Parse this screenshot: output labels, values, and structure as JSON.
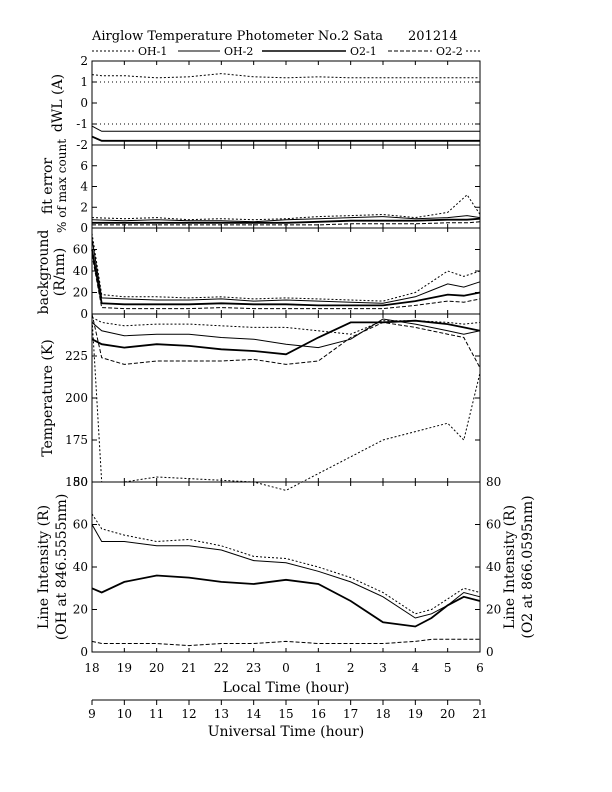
{
  "header": {
    "title": "Airglow Temperature Photometer No.2  Sata",
    "date": "201214",
    "legend": [
      "OH-1",
      "OH-2",
      "O2-1",
      "O2-2"
    ]
  },
  "colors": {
    "ink": "#000000",
    "background": "#ffffff"
  },
  "chart_data": [
    {
      "type": "line",
      "panel": "dwl",
      "ylabel": "dWL (A)",
      "ylim": [
        -2,
        2
      ],
      "yticks": [
        -2,
        -1,
        0,
        1,
        2
      ],
      "x": [
        18.0,
        18.3,
        19,
        20,
        21,
        22,
        23,
        24,
        25,
        26,
        27,
        28,
        29,
        30
      ],
      "series": [
        {
          "name": "OH-1",
          "values": [
            1.35,
            1.3,
            1.3,
            1.2,
            1.25,
            1.4,
            1.25,
            1.2,
            1.25,
            1.2,
            1.2,
            1.2,
            1.2,
            1.2
          ]
        },
        {
          "name": "O2-1",
          "values": [
            -1.1,
            -1.35,
            -1.35,
            -1.35,
            -1.35,
            -1.35,
            -1.35,
            -1.35,
            -1.35,
            -1.35,
            -1.35,
            -1.35,
            -1.35,
            -1.35
          ]
        },
        {
          "name": "O2-2",
          "values": [
            -1.6,
            -1.8,
            -1.8,
            -1.8,
            -1.8,
            -1.8,
            -1.8,
            -1.8,
            -1.8,
            -1.8,
            -1.8,
            -1.8,
            -1.8,
            -1.8
          ]
        }
      ]
    },
    {
      "type": "line",
      "panel": "fit",
      "ylabel": "fit error",
      "ylabel2": "% of max count",
      "ylim": [
        0,
        8
      ],
      "yticks": [
        0,
        2,
        4,
        6
      ],
      "x": [
        18.0,
        19,
        20,
        21,
        22,
        23,
        24,
        25,
        26,
        27,
        28,
        29,
        29.6,
        30
      ],
      "series": [
        {
          "name": "OH-1",
          "values": [
            1.0,
            0.9,
            1.0,
            0.8,
            0.9,
            0.8,
            0.9,
            1.1,
            1.2,
            1.3,
            1.0,
            1.5,
            3.2,
            1.3
          ]
        },
        {
          "name": "OH-2",
          "values": [
            0.8,
            0.7,
            0.8,
            0.7,
            0.7,
            0.6,
            0.8,
            0.9,
            1.0,
            1.1,
            0.9,
            1.0,
            1.2,
            1.0
          ]
        },
        {
          "name": "O2-1",
          "values": [
            0.5,
            0.5,
            0.5,
            0.5,
            0.5,
            0.5,
            0.5,
            0.6,
            0.7,
            0.7,
            0.7,
            0.8,
            0.8,
            0.9
          ]
        },
        {
          "name": "O2-2",
          "values": [
            0.3,
            0.3,
            0.3,
            0.3,
            0.3,
            0.3,
            0.3,
            0.3,
            0.4,
            0.4,
            0.4,
            0.5,
            0.5,
            0.6
          ]
        }
      ]
    },
    {
      "type": "line",
      "panel": "background",
      "ylabel": "background",
      "ylabel2": "(R/nm)",
      "ylim": [
        0,
        80
      ],
      "yticks": [
        0,
        20,
        40,
        60
      ],
      "x": [
        18.0,
        18.3,
        19,
        20,
        21,
        22,
        23,
        24,
        25,
        26,
        27,
        28,
        28.5,
        29,
        29.5,
        30
      ],
      "series": [
        {
          "name": "OH-1",
          "values": [
            75,
            18,
            16,
            16,
            15,
            16,
            14,
            15,
            14,
            13,
            12,
            20,
            30,
            40,
            35,
            40
          ]
        },
        {
          "name": "OH-2",
          "values": [
            70,
            15,
            14,
            13,
            13,
            14,
            12,
            13,
            12,
            11,
            10,
            16,
            22,
            28,
            25,
            30
          ]
        },
        {
          "name": "O2-1",
          "values": [
            60,
            10,
            9,
            9,
            9,
            10,
            9,
            9,
            8,
            8,
            8,
            12,
            15,
            18,
            17,
            20
          ]
        },
        {
          "name": "O2-2",
          "values": [
            55,
            6,
            5,
            5,
            5,
            6,
            5,
            5,
            5,
            5,
            5,
            8,
            10,
            12,
            11,
            14
          ]
        }
      ]
    },
    {
      "type": "line",
      "panel": "temperature",
      "ylabel": "Temperature (K)",
      "ylim": [
        150,
        250
      ],
      "yticks": [
        150,
        175,
        200,
        225
      ],
      "x": [
        18.0,
        18.3,
        19,
        20,
        21,
        22,
        23,
        24,
        25,
        26,
        27,
        28,
        29,
        29.5,
        30
      ],
      "series": [
        {
          "name": "OH-1",
          "values": [
            248,
            245,
            243,
            244,
            244,
            243,
            242,
            242,
            240,
            238,
            246,
            246,
            245,
            244,
            245
          ]
        },
        {
          "name": "OH-2",
          "values": [
            245,
            240,
            237,
            238,
            238,
            236,
            235,
            232,
            230,
            235,
            247,
            244,
            240,
            238,
            240
          ]
        },
        {
          "name": "O2-1",
          "values": [
            235,
            232,
            230,
            232,
            231,
            229,
            228,
            226,
            236,
            245,
            245,
            246,
            244,
            242,
            240
          ]
        },
        {
          "name": "O2-2",
          "values": [
            250,
            224,
            220,
            222,
            222,
            222,
            223,
            220,
            222,
            236,
            245,
            242,
            238,
            236,
            218
          ]
        },
        {
          "name": "O2-2",
          "values": [
            248,
            150,
            150,
            153,
            152,
            151,
            150,
            145,
            155,
            165,
            175,
            180,
            185,
            175,
            215
          ]
        }
      ]
    },
    {
      "type": "line",
      "panel": "intensity",
      "ylabel": "Line Intensity (R)",
      "ylabel2": "(OH at 846.5555nm)",
      "ylabel_right": "Line Intensity (R)",
      "ylabel_right2": "(O2 at 866.0595nm)",
      "ylim": [
        0,
        80
      ],
      "yticks": [
        0,
        20,
        40,
        60,
        80
      ],
      "x": [
        18.0,
        18.3,
        19,
        20,
        21,
        22,
        23,
        24,
        25,
        26,
        27,
        28,
        28.5,
        29,
        29.5,
        30
      ],
      "series": [
        {
          "name": "OH-1",
          "values": [
            65,
            58,
            55,
            52,
            53,
            50,
            45,
            44,
            40,
            35,
            28,
            18,
            20,
            25,
            30,
            28
          ]
        },
        {
          "name": "OH-2",
          "values": [
            60,
            52,
            52,
            50,
            50,
            48,
            43,
            42,
            38,
            33,
            26,
            16,
            18,
            22,
            28,
            26
          ]
        },
        {
          "name": "O2-1",
          "values": [
            30,
            28,
            33,
            36,
            35,
            33,
            32,
            34,
            32,
            24,
            14,
            12,
            16,
            22,
            26,
            24
          ]
        },
        {
          "name": "O2-2",
          "values": [
            5,
            4,
            4,
            4,
            3,
            4,
            4,
            5,
            4,
            4,
            4,
            5,
            6,
            6,
            6,
            6
          ]
        }
      ]
    }
  ],
  "axes": {
    "xlabel_local": "Local Time (hour)",
    "xlabel_ut": "Universal Time (hour)",
    "local_ticks": [
      "18",
      "19",
      "20",
      "21",
      "22",
      "23",
      "0",
      "1",
      "2",
      "3",
      "4",
      "5",
      "6"
    ],
    "ut_ticks": [
      "9",
      "10",
      "11",
      "12",
      "13",
      "14",
      "15",
      "16",
      "17",
      "18",
      "19",
      "20",
      "21"
    ],
    "intensity_right_ticks": [
      "0",
      "20",
      "40",
      "60",
      "80"
    ]
  }
}
